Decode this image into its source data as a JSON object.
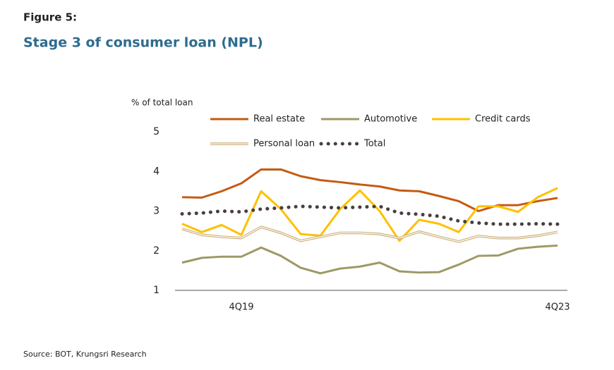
{
  "figure_label": "Figure 5:",
  "source": "Source: BOT, Krungsri Research",
  "chart_data": {
    "type": "line",
    "title": "Stage 3 of consumer loan (NPL)",
    "y_axis_label": "% of total loan",
    "categories": [
      null,
      null,
      null,
      "4Q19",
      null,
      null,
      null,
      null,
      null,
      null,
      null,
      null,
      null,
      null,
      null,
      null,
      null,
      null,
      null,
      "4Q23"
    ],
    "series": [
      {
        "name": "Real estate",
        "color": "#c55a11",
        "line_style": "solid",
        "values": [
          3.35,
          3.34,
          3.5,
          3.7,
          4.05,
          4.05,
          3.88,
          3.78,
          3.73,
          3.67,
          3.62,
          3.52,
          3.5,
          3.38,
          3.25,
          3.0,
          3.15,
          3.15,
          3.25,
          3.33
        ]
      },
      {
        "name": "Automotive",
        "color": "#9e9866",
        "line_style": "solid",
        "values": [
          1.7,
          1.82,
          1.85,
          1.85,
          2.08,
          1.87,
          1.57,
          1.43,
          1.55,
          1.6,
          1.7,
          1.48,
          1.45,
          1.46,
          1.65,
          1.87,
          1.88,
          2.05,
          2.1,
          2.13
        ]
      },
      {
        "name": "Credit cards",
        "color": "#ffc000",
        "line_style": "solid",
        "values": [
          2.68,
          2.47,
          2.65,
          2.4,
          3.5,
          3.05,
          2.42,
          2.38,
          3.05,
          3.52,
          3.0,
          2.25,
          2.78,
          2.68,
          2.47,
          3.12,
          3.12,
          2.98,
          3.35,
          3.58
        ]
      },
      {
        "name": "Personal loan",
        "color": "#c9a96e",
        "line_style": "double",
        "values": [
          2.55,
          2.4,
          2.35,
          2.32,
          2.6,
          2.45,
          2.25,
          2.35,
          2.45,
          2.45,
          2.42,
          2.32,
          2.48,
          2.35,
          2.23,
          2.37,
          2.32,
          2.32,
          2.38,
          2.47
        ]
      },
      {
        "name": "Total",
        "color": "#4a3f3f",
        "line_style": "dotted",
        "values": [
          2.93,
          2.95,
          3.0,
          2.98,
          3.05,
          3.08,
          3.12,
          3.1,
          3.08,
          3.1,
          3.12,
          2.95,
          2.92,
          2.87,
          2.75,
          2.7,
          2.67,
          2.67,
          2.68,
          2.67
        ]
      }
    ],
    "ylim": [
      1,
      5
    ],
    "yticks": [
      1,
      2,
      3,
      4,
      5
    ],
    "grid": false
  }
}
